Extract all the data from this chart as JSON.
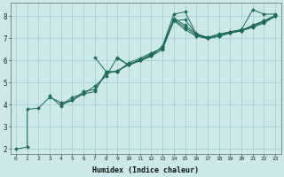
{
  "xlabel": "Humidex (Indice chaleur)",
  "line_color": "#1a6b5a",
  "bg_color": "#cce8e8",
  "grid_color": "#9ecece",
  "marker": "D",
  "marker_size": 2,
  "xlim": [
    -0.5,
    23.5
  ],
  "ylim": [
    1.8,
    8.6
  ],
  "xticks": [
    0,
    1,
    2,
    3,
    4,
    5,
    6,
    7,
    8,
    9,
    10,
    11,
    12,
    13,
    14,
    15,
    16,
    17,
    18,
    19,
    20,
    21,
    22,
    23
  ],
  "yticks": [
    2,
    3,
    4,
    5,
    6,
    7,
    8
  ],
  "lines": [
    [
      [
        0,
        2.0
      ],
      [
        1,
        2.1
      ],
      [
        1,
        3.8
      ],
      [
        2,
        3.85
      ],
      [
        3,
        4.35
      ],
      [
        4,
        4.1
      ],
      [
        5,
        4.2
      ],
      [
        6,
        4.5
      ],
      [
        7,
        4.85
      ],
      [
        8,
        5.3
      ],
      [
        9,
        6.15
      ],
      [
        10,
        5.8
      ],
      [
        11,
        6.0
      ],
      [
        12,
        6.2
      ],
      [
        13,
        6.65
      ],
      [
        14,
        8.1
      ],
      [
        15,
        8.2
      ],
      [
        16,
        7.2
      ],
      [
        17,
        7.0
      ],
      [
        18,
        7.1
      ],
      [
        19,
        7.25
      ],
      [
        20,
        7.35
      ],
      [
        21,
        7.5
      ],
      [
        22,
        7.7
      ],
      [
        23,
        8.0
      ]
    ],
    [
      [
        3,
        4.4
      ],
      [
        4,
        3.95
      ],
      [
        5,
        4.35
      ],
      [
        6,
        4.5
      ],
      [
        7,
        4.6
      ],
      [
        8,
        5.5
      ],
      [
        9,
        5.5
      ],
      [
        10,
        5.9
      ],
      [
        11,
        6.1
      ],
      [
        12,
        6.35
      ],
      [
        13,
        6.55
      ],
      [
        14,
        7.8
      ],
      [
        15,
        7.85
      ],
      [
        16,
        7.2
      ],
      [
        17,
        7.05
      ],
      [
        18,
        7.2
      ],
      [
        19,
        7.3
      ],
      [
        20,
        7.4
      ],
      [
        21,
        8.3
      ],
      [
        22,
        8.1
      ],
      [
        23,
        8.1
      ]
    ],
    [
      [
        4,
        4.0
      ],
      [
        5,
        4.2
      ],
      [
        6,
        4.6
      ],
      [
        7,
        4.7
      ],
      [
        8,
        5.4
      ],
      [
        9,
        5.55
      ],
      [
        10,
        5.8
      ],
      [
        11,
        6.05
      ],
      [
        12,
        6.25
      ],
      [
        13,
        6.6
      ],
      [
        14,
        7.85
      ],
      [
        15,
        7.5
      ],
      [
        16,
        7.15
      ],
      [
        17,
        7.0
      ],
      [
        18,
        7.1
      ],
      [
        19,
        7.25
      ],
      [
        20,
        7.35
      ],
      [
        21,
        7.6
      ],
      [
        22,
        7.8
      ],
      [
        23,
        8.0
      ]
    ],
    [
      [
        7,
        6.15
      ],
      [
        8,
        5.5
      ],
      [
        9,
        5.5
      ],
      [
        10,
        5.85
      ],
      [
        11,
        6.0
      ],
      [
        12,
        6.2
      ],
      [
        13,
        6.5
      ],
      [
        14,
        7.8
      ],
      [
        15,
        7.4
      ],
      [
        16,
        7.1
      ],
      [
        17,
        7.0
      ],
      [
        18,
        7.1
      ],
      [
        19,
        7.25
      ],
      [
        20,
        7.35
      ],
      [
        21,
        7.55
      ],
      [
        22,
        7.75
      ],
      [
        23,
        8.0
      ]
    ],
    [
      [
        9,
        6.1
      ],
      [
        10,
        5.8
      ],
      [
        11,
        6.0
      ],
      [
        12,
        6.3
      ],
      [
        13,
        6.6
      ],
      [
        14,
        7.9
      ],
      [
        15,
        7.6
      ],
      [
        16,
        7.2
      ],
      [
        17,
        7.05
      ],
      [
        18,
        7.15
      ],
      [
        19,
        7.3
      ],
      [
        20,
        7.4
      ],
      [
        21,
        7.55
      ],
      [
        22,
        7.8
      ],
      [
        23,
        8.05
      ]
    ]
  ]
}
